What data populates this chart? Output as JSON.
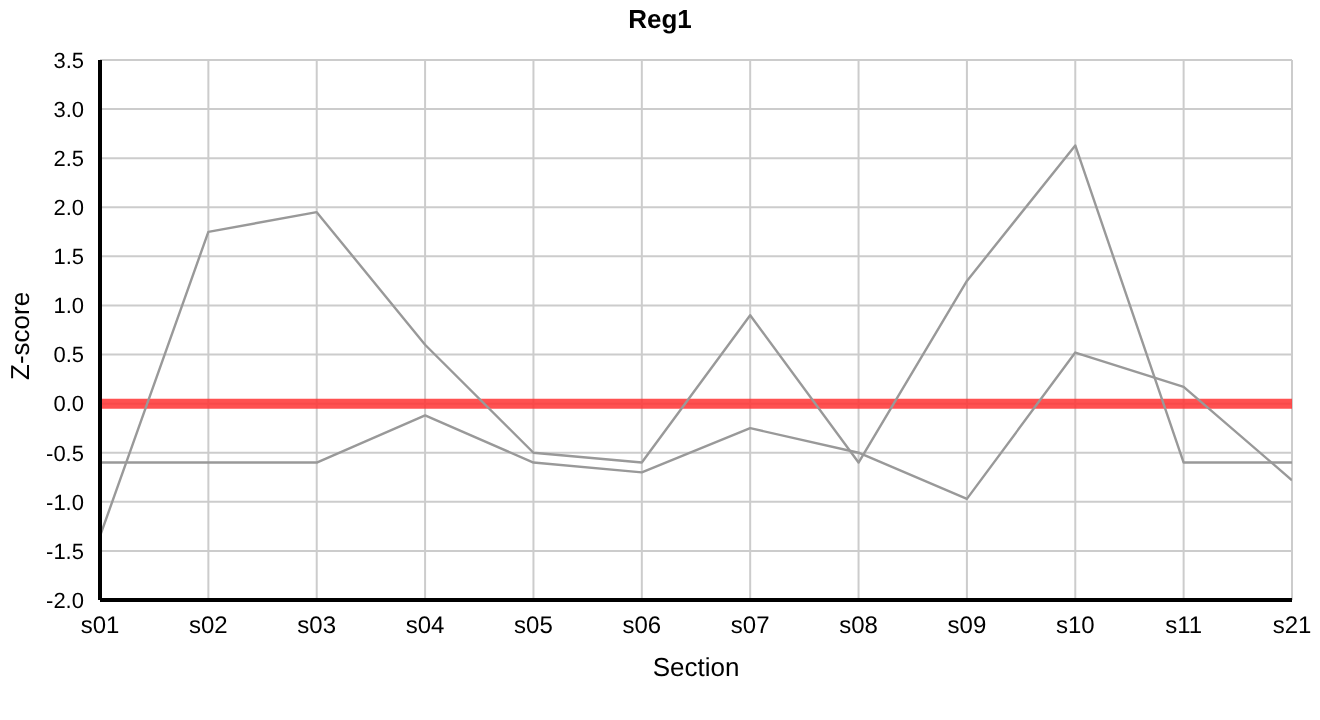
{
  "chart_data": {
    "type": "line",
    "title": "Reg1",
    "xlabel": "Section",
    "ylabel": "Z-score",
    "categories": [
      "s01",
      "s02",
      "s03",
      "s04",
      "s05",
      "s06",
      "s07",
      "s08",
      "s09",
      "s10",
      "s11",
      "s21"
    ],
    "series": [
      {
        "color": "#999999",
        "values": [
          -1.35,
          1.75,
          1.95,
          0.6,
          -0.5,
          -0.6,
          0.9,
          -0.6,
          1.25,
          2.63,
          -0.6,
          -0.6
        ]
      },
      {
        "color": "#999999",
        "values": [
          -0.6,
          -0.6,
          -0.6,
          -0.12,
          -0.6,
          -0.7,
          -0.25,
          -0.5,
          -0.97,
          0.52,
          0.17,
          -0.78
        ]
      }
    ],
    "ref_lines": [
      {
        "axis": "y",
        "value": 0,
        "color": "#ff3333"
      }
    ],
    "ylim": [
      -2.0,
      3.5
    ],
    "yticks": [
      {
        "value": -2,
        "label": "-2.0"
      },
      {
        "value": -1.5,
        "label": "-1.5"
      },
      {
        "value": -1,
        "label": "-1.0"
      },
      {
        "value": -0.5,
        "label": "-0.5"
      },
      {
        "value": 0,
        "label": "0.0"
      },
      {
        "value": 0.5,
        "label": "0.5"
      },
      {
        "value": 1,
        "label": "1.0"
      },
      {
        "value": 1.5,
        "label": "1.5"
      },
      {
        "value": 2,
        "label": "2.0"
      },
      {
        "value": 2.5,
        "label": "2.5"
      },
      {
        "value": 3,
        "label": "3.0"
      },
      {
        "value": 3.5,
        "label": "3.5"
      }
    ],
    "grid": true,
    "legend": false,
    "marker": "none",
    "line_style": "solid"
  }
}
